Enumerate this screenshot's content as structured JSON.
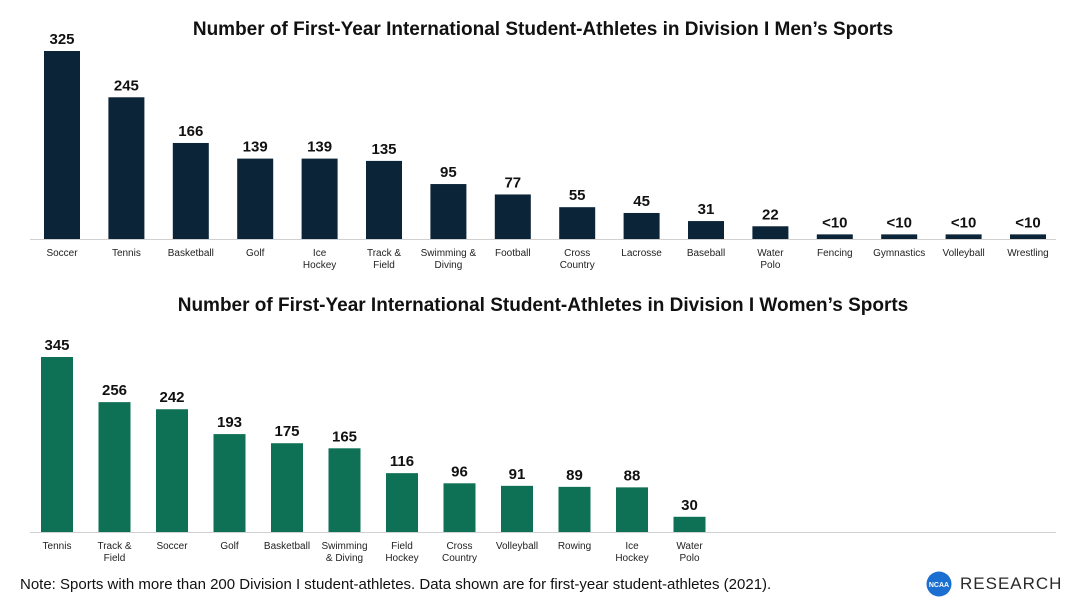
{
  "note": "Note: Sports with more than 200 Division I student-athletes. Data shown are for first-year student-athletes (2021).",
  "brand": {
    "logo_text": "NCAA",
    "name": "RESEARCH",
    "logo_color": "#1a6fd1"
  },
  "chart_data": [
    {
      "type": "bar",
      "title": "Number of First-Year International Student-Athletes in Division I Men’s Sports",
      "xlabel": "",
      "ylabel": "",
      "ylim": [
        0,
        325
      ],
      "color": "#0b2438",
      "categories": [
        "Soccer",
        "Tennis",
        "Basketball",
        "Golf",
        "Ice Hockey",
        "Track & Field",
        "Swimming & Diving",
        "Football",
        "Cross Country",
        "Lacrosse",
        "Baseball",
        "Water Polo",
        "Fencing",
        "Gymnastics",
        "Volleyball",
        "Wrestling"
      ],
      "category_lines": [
        [
          "Soccer"
        ],
        [
          "Tennis"
        ],
        [
          "Basketball"
        ],
        [
          "Golf"
        ],
        [
          "Ice",
          "Hockey"
        ],
        [
          "Track &",
          "Field"
        ],
        [
          "Swimming &",
          "Diving"
        ],
        [
          "Football"
        ],
        [
          "Cross",
          "Country"
        ],
        [
          "Lacrosse"
        ],
        [
          "Baseball"
        ],
        [
          "Water",
          "Polo"
        ],
        [
          "Fencing"
        ],
        [
          "Gymnastics"
        ],
        [
          "Volleyball"
        ],
        [
          "Wrestling"
        ]
      ],
      "values": [
        325,
        245,
        166,
        139,
        139,
        135,
        95,
        77,
        55,
        45,
        31,
        22,
        null,
        null,
        null,
        null
      ],
      "labels": [
        "325",
        "245",
        "166",
        "139",
        "139",
        "135",
        "95",
        "77",
        "55",
        "45",
        "31",
        "22",
        "<10",
        "<10",
        "<10",
        "<10"
      ],
      "approx_values_for_small": 8
    },
    {
      "type": "bar",
      "title": "Number of First-Year International Student-Athletes in Division I Women’s Sports",
      "xlabel": "",
      "ylabel": "",
      "ylim": [
        0,
        345
      ],
      "color": "#0e7054",
      "categories": [
        "Tennis",
        "Track & Field",
        "Soccer",
        "Golf",
        "Basketball",
        "Swimming & Diving",
        "Field Hockey",
        "Cross Country",
        "Volleyball",
        "Rowing",
        "Ice Hockey",
        "Water Polo"
      ],
      "category_lines": [
        [
          "Tennis"
        ],
        [
          "Track &",
          "Field"
        ],
        [
          "Soccer"
        ],
        [
          "Golf"
        ],
        [
          "Basketball"
        ],
        [
          "Swimming",
          "& Diving"
        ],
        [
          "Field",
          "Hockey"
        ],
        [
          "Cross",
          "Country"
        ],
        [
          "Volleyball"
        ],
        [
          "Rowing"
        ],
        [
          "Ice",
          "Hockey"
        ],
        [
          "Water",
          "Polo"
        ]
      ],
      "values": [
        345,
        256,
        242,
        193,
        175,
        165,
        116,
        96,
        91,
        89,
        88,
        30
      ],
      "labels": [
        "345",
        "256",
        "242",
        "193",
        "175",
        "165",
        "116",
        "96",
        "91",
        "89",
        "88",
        "30"
      ]
    }
  ]
}
